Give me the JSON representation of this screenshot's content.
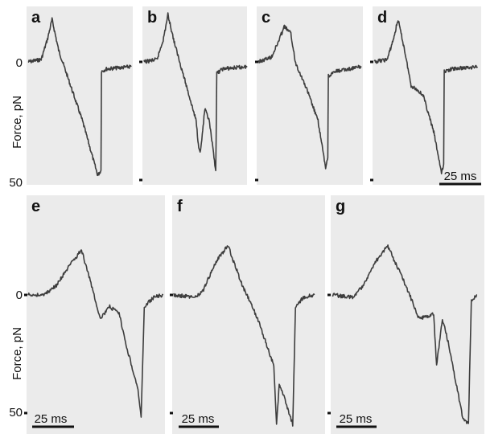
{
  "chart_data": {
    "type": "line",
    "ylabel": "Force, pN",
    "y_ticks": [
      "0",
      "50"
    ],
    "scale_bar_label": "25 ms",
    "notes": "Force traces; y increases downward (0 near top, 50 near bottom). x in ms from panel start.",
    "panels": [
      {
        "label": "a",
        "x": [
          0,
          12,
          18,
          22,
          28,
          50,
          64,
          67,
          67.5,
          72,
          95
        ],
        "y": [
          0,
          -1,
          -10,
          -18,
          -5,
          25,
          48,
          46,
          4,
          3,
          2
        ]
      },
      {
        "label": "b",
        "x": [
          0,
          12,
          18,
          22,
          28,
          48,
          50,
          52,
          56,
          60,
          66,
          67,
          72,
          95
        ],
        "y": [
          0,
          -1,
          -10,
          -20,
          -8,
          25,
          35,
          38,
          20,
          25,
          46,
          5,
          3,
          2
        ]
      },
      {
        "label": "c",
        "x": [
          0,
          12,
          18,
          24,
          30,
          34,
          45,
          55,
          62,
          64,
          64.5,
          72,
          95
        ],
        "y": [
          0,
          -2,
          -8,
          -15,
          -12,
          0,
          12,
          25,
          45,
          40,
          6,
          4,
          2
        ]
      },
      {
        "label": "d",
        "x": [
          0,
          12,
          18,
          22,
          28,
          34,
          40,
          45,
          55,
          62,
          64,
          64.5,
          72,
          95
        ],
        "y": [
          0,
          -1,
          -10,
          -18,
          -5,
          10,
          12,
          14,
          30,
          47,
          44,
          4,
          3,
          2
        ]
      },
      {
        "label": "e",
        "x": [
          0,
          10,
          18,
          26,
          34,
          40,
          46,
          52,
          58,
          62,
          70,
          72,
          74,
          80,
          86
        ],
        "y": [
          0,
          0,
          -4,
          -12,
          -19,
          -5,
          10,
          5,
          8,
          20,
          40,
          52,
          5,
          1,
          0
        ]
      },
      {
        "label": "f",
        "x": [
          0,
          16,
          22,
          30,
          40,
          50,
          62,
          74,
          76,
          78,
          82,
          88,
          90,
          96,
          104
        ],
        "y": [
          0,
          1,
          -2,
          -13,
          -21,
          -5,
          10,
          30,
          55,
          38,
          44,
          55,
          5,
          1,
          0
        ]
      },
      {
        "label": "g",
        "x": [
          0,
          14,
          20,
          30,
          38,
          50,
          60,
          70,
          72,
          76,
          80,
          90,
          94,
          96,
          100
        ],
        "y": [
          0,
          1,
          -3,
          -14,
          -21,
          -5,
          10,
          8,
          30,
          10,
          20,
          52,
          55,
          2,
          0
        ]
      }
    ]
  }
}
